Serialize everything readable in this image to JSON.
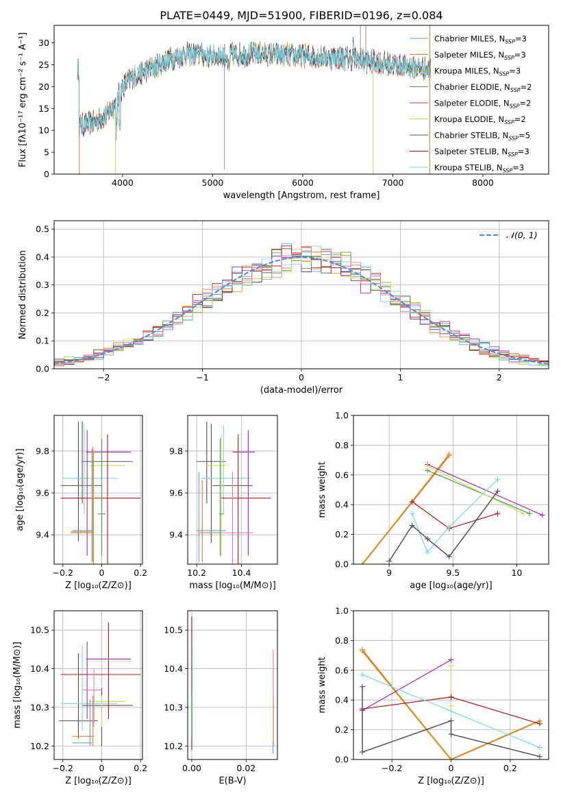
{
  "figure": {
    "title": "PLATE=0449, MJD=51900, FIBERID=0196, z=0.084"
  },
  "colors": {
    "chabrier_miles": "#6a9bd8",
    "salpeter_miles": "#e07b39",
    "kroupa_miles": "#c9a227",
    "chabrier_elodie": "#5a9a4b",
    "salpeter_elodie": "#9b30b0",
    "kroupa_elodie": "#c6e05a",
    "chabrier_stelib": "#505050",
    "salpeter_stelib": "#b01818",
    "kroupa_stelib": "#7fd6e0",
    "normal_curve": "#5b8bd6",
    "highlight_pink": "#e87ab3"
  },
  "chart_data": [
    {
      "id": "spectrum",
      "type": "line",
      "xlabel": "wavelength [Angstrom, rest frame]",
      "ylabel": "Flux [f$_\\lambda$10$^{-17}$ erg cm$^{-2}$ s$^{-1}$ A$^{-1}$]",
      "xlim": [
        3240,
        8730
      ],
      "ylim": [
        0,
        34
      ],
      "xticks": [
        4000,
        5000,
        6000,
        7000,
        8000
      ],
      "yticks": [
        0,
        5,
        10,
        15,
        20,
        25,
        30
      ],
      "grid": false,
      "legend_position": "upper-right",
      "legend": [
        {
          "name": "Chabrier MILES, N",
          "sub": "SSP",
          "tail": "=3",
          "color": "#6a9bd8"
        },
        {
          "name": "Salpeter MILES, N",
          "sub": "SSP",
          "tail": "=3",
          "color": "#e07b39"
        },
        {
          "name": "Kroupa MILES, N",
          "sub": "SSP",
          "tail": "=3",
          "color": "#c9a227"
        },
        {
          "name": "Chabrier ELODIE, N",
          "sub": "SSP",
          "tail": "=2",
          "color": "#5a9a4b"
        },
        {
          "name": "Salpeter ELODIE, N",
          "sub": "SSP",
          "tail": "=2",
          "color": "#9b30b0"
        },
        {
          "name": "Kroupa ELODIE, N",
          "sub": "SSP",
          "tail": "=2",
          "color": "#c6e05a"
        },
        {
          "name": "Chabrier STELIB, N",
          "sub": "SSP",
          "tail": "=5",
          "color": "#505050"
        },
        {
          "name": "Salpeter STELIB, N",
          "sub": "SSP",
          "tail": "=3",
          "color": "#b01818"
        },
        {
          "name": "Kroupa STELIB, N",
          "sub": "SSP",
          "tail": "=3",
          "color": "#7fd6e0"
        }
      ],
      "continuum_points": [
        [
          3520,
          11
        ],
        [
          3700,
          12
        ],
        [
          3820,
          13.5
        ],
        [
          3920,
          16
        ],
        [
          4000,
          20
        ],
        [
          4100,
          22
        ],
        [
          4300,
          24
        ],
        [
          4500,
          26
        ],
        [
          4700,
          27.5
        ],
        [
          5000,
          27
        ],
        [
          5500,
          27.5
        ],
        [
          6000,
          27
        ],
        [
          6500,
          26.5
        ],
        [
          7000,
          25
        ],
        [
          7400,
          24
        ]
      ],
      "spikes": [
        [
          5130,
          1
        ],
        [
          6780,
          0
        ],
        [
          7380,
          34
        ]
      ]
    },
    {
      "id": "residuals",
      "type": "histogram",
      "xlabel": "(data-model)/error",
      "ylabel": "Normed distribution",
      "xlim": [
        -2.5,
        2.5
      ],
      "ylim": [
        0,
        0.53
      ],
      "xticks": [
        -2,
        -1,
        0,
        1,
        2
      ],
      "yticks": [
        0.0,
        0.1,
        0.2,
        0.3,
        0.4,
        0.5
      ],
      "grid": true,
      "legend_position": "upper-right",
      "legend": [
        {
          "name": "𝒩(0, 1)",
          "color": "#5b8bd6",
          "style": "dashed"
        }
      ],
      "bin_width": 0.1
    },
    {
      "id": "age_vs_Z",
      "type": "errorbar",
      "xlabel": "Z [log₁₀(Z/Z⊙)]",
      "ylabel": "age  [log₁₀(age/yr)]",
      "xlim": [
        -0.245,
        0.21
      ],
      "ylim": [
        9.26,
        9.97
      ],
      "xticks": [
        -0.2,
        0.0,
        0.2
      ],
      "yticks": [
        9.4,
        9.6,
        9.8
      ],
      "grid": true
    },
    {
      "id": "age_vs_mass",
      "type": "errorbar",
      "xlabel": "mass [log₁₀(M/M⊙)]",
      "xlim": [
        10.16,
        10.56
      ],
      "ylim": [
        9.26,
        9.97
      ],
      "xticks": [
        10.2,
        10.4
      ],
      "yticks": [
        9.4,
        9.6,
        9.8
      ],
      "grid": true
    },
    {
      "id": "weight_vs_age",
      "type": "line",
      "xlabel": "age  [log₁₀(age/yr)]",
      "ylabel": "mass weight",
      "xlim": [
        8.72,
        10.25
      ],
      "ylim": [
        0,
        1
      ],
      "xticks": [
        9.0,
        9.5,
        10.0
      ],
      "yticks": [
        0.0,
        0.2,
        0.4,
        0.6,
        0.8,
        1.0
      ],
      "grid": true,
      "series": [
        {
          "color": "#e07b39",
          "width": 2.2,
          "points": [
            [
              8.79,
              0.0
            ],
            [
              9.47,
              0.73
            ]
          ]
        },
        {
          "color": "#c9a227",
          "width": 1.2,
          "points": [
            [
              8.79,
              0.0
            ],
            [
              9.47,
              0.74
            ]
          ]
        },
        {
          "color": "#5a9a4b",
          "width": 1.2,
          "points": [
            [
              9.3,
              0.63
            ],
            [
              10.1,
              0.34
            ]
          ]
        },
        {
          "color": "#9b30b0",
          "width": 1.2,
          "points": [
            [
              9.3,
              0.67
            ],
            [
              10.2,
              0.33
            ]
          ]
        },
        {
          "color": "#c6e05a",
          "width": 1.2,
          "points": [
            [
              9.3,
              0.66
            ],
            [
              10.05,
              0.34
            ]
          ]
        },
        {
          "color": "#b01818",
          "width": 1.2,
          "points": [
            [
              9.18,
              0.42
            ],
            [
              9.47,
              0.24
            ],
            [
              9.85,
              0.34
            ]
          ]
        },
        {
          "color": "#7fd6e0",
          "width": 1.2,
          "points": [
            [
              9.18,
              0.34
            ],
            [
              9.3,
              0.08
            ],
            [
              9.47,
              0.25
            ],
            [
              9.85,
              0.57
            ]
          ]
        },
        {
          "color": "#505050",
          "width": 1.5,
          "points": [
            [
              9.0,
              0.02
            ],
            [
              9.18,
              0.26
            ],
            [
              9.3,
              0.17
            ],
            [
              9.47,
              0.05
            ],
            [
              9.85,
              0.49
            ]
          ]
        }
      ]
    },
    {
      "id": "mass_vs_Z",
      "type": "errorbar",
      "xlabel": "Z [log₁₀(Z/Z⊙)]",
      "ylabel": "mass [log₁₀(M/M⊙)]",
      "xlim": [
        -0.245,
        0.21
      ],
      "ylim": [
        10.165,
        10.55
      ],
      "xticks": [
        -0.2,
        0.0,
        0.2
      ],
      "yticks": [
        10.2,
        10.3,
        10.4,
        10.5
      ],
      "grid": true
    },
    {
      "id": "mass_vs_ebv",
      "type": "errorbar",
      "xlabel": "E(B-V)",
      "xlim": [
        -0.0015,
        0.0315
      ],
      "ylim": [
        10.165,
        10.55
      ],
      "xticks": [
        0.0,
        0.02
      ],
      "yticks": [
        10.2,
        10.3,
        10.4,
        10.5
      ],
      "grid": true
    },
    {
      "id": "weight_vs_Z",
      "type": "line",
      "xlabel": "Z [log₁₀(Z/Z⊙)]",
      "ylabel": "mass weight",
      "xlim": [
        -0.33,
        0.33
      ],
      "ylim": [
        0,
        1
      ],
      "xticks": [
        -0.2,
        0.0,
        0.2
      ],
      "yticks": [
        0.0,
        0.2,
        0.4,
        0.6,
        0.8,
        1.0
      ],
      "grid": true,
      "series": [
        {
          "color": "#e07b39",
          "width": 2.2,
          "points": [
            [
              -0.3,
              0.73
            ],
            [
              0.0,
              0.0
            ],
            [
              0.3,
              0.26
            ]
          ]
        },
        {
          "color": "#c9a227",
          "width": 1.2,
          "points": [
            [
              -0.3,
              0.74
            ],
            [
              0.0,
              0.0
            ],
            [
              0.3,
              0.26
            ]
          ]
        },
        {
          "color": "#9b30b0",
          "width": 1.2,
          "points": [
            [
              -0.3,
              0.33
            ],
            [
              0.0,
              0.67
            ]
          ]
        },
        {
          "color": "#c6e05a",
          "width": 1.2,
          "points": [
            [
              0.0,
              0.63
            ],
            [
              0.0,
              0.36
            ]
          ]
        },
        {
          "color": "#b01818",
          "width": 1.2,
          "points": [
            [
              -0.3,
              0.34
            ],
            [
              0.0,
              0.42
            ],
            [
              0.3,
              0.24
            ]
          ]
        },
        {
          "color": "#7fd6e0",
          "width": 1.2,
          "points": [
            [
              -0.3,
              0.57
            ],
            [
              0.3,
              0.08
            ]
          ]
        },
        {
          "color": "#505050",
          "width": 1.5,
          "points": [
            [
              -0.3,
              0.49
            ],
            [
              -0.3,
              0.05
            ],
            [
              0.0,
              0.26
            ],
            [
              0.0,
              0.17
            ],
            [
              0.3,
              0.02
            ]
          ]
        }
      ]
    }
  ]
}
